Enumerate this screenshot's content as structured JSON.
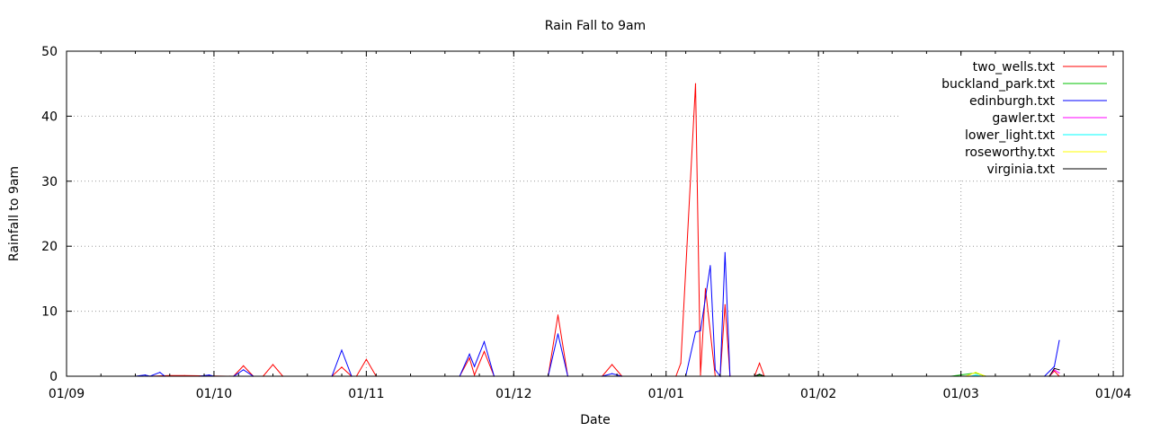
{
  "chart_data": {
    "type": "line",
    "title": "Rain Fall to 9am",
    "xlabel": "Date",
    "ylabel": "Rainfall to 9am",
    "x_tick_labels": [
      "01/09",
      "01/10",
      "01/11",
      "01/12",
      "01/01",
      "01/02",
      "01/03",
      "01/04"
    ],
    "x_tick_dates": [
      "2023-09-01",
      "2023-10-01",
      "2023-11-01",
      "2023-12-01",
      "2024-01-01",
      "2024-02-01",
      "2024-03-01",
      "2024-04-01"
    ],
    "xlim": [
      "2023-09-01",
      "2024-04-03"
    ],
    "y_ticks": [
      0,
      10,
      20,
      30,
      40,
      50
    ],
    "ylim": [
      0,
      50
    ],
    "grid": true,
    "legend_position": "top-right",
    "series": [
      {
        "name": "two_wells.txt",
        "color": "#ff0000",
        "points": [
          [
            "2023-09-18",
            0
          ],
          [
            "2023-09-22",
            0.1
          ],
          [
            "2023-09-25",
            0.1
          ],
          [
            "2023-10-05",
            0
          ],
          [
            "2023-10-07",
            1.6
          ],
          [
            "2023-10-09",
            0
          ],
          [
            "2023-10-11",
            0
          ],
          [
            "2023-10-13",
            1.8
          ],
          [
            "2023-10-15",
            0
          ],
          [
            "2023-10-25",
            0
          ],
          [
            "2023-10-27",
            1.4
          ],
          [
            "2023-10-29",
            0
          ],
          [
            "2023-10-30",
            0
          ],
          [
            "2023-11-01",
            2.6
          ],
          [
            "2023-11-03",
            0
          ],
          [
            "2023-11-20",
            0
          ],
          [
            "2023-11-22",
            2.8
          ],
          [
            "2023-11-23",
            0.2
          ],
          [
            "2023-11-25",
            3.8
          ],
          [
            "2023-11-27",
            0
          ],
          [
            "2023-12-08",
            0
          ],
          [
            "2023-12-10",
            9.4
          ],
          [
            "2023-12-12",
            0
          ],
          [
            "2023-12-19",
            0
          ],
          [
            "2023-12-21",
            1.8
          ],
          [
            "2023-12-23",
            0
          ],
          [
            "2024-01-03",
            0
          ],
          [
            "2024-01-04",
            2.0
          ],
          [
            "2024-01-07",
            45.0
          ],
          [
            "2024-01-08",
            0.2
          ],
          [
            "2024-01-09",
            13.5
          ],
          [
            "2024-01-11",
            0
          ],
          [
            "2024-01-12",
            0
          ],
          [
            "2024-01-13",
            11.0
          ],
          [
            "2024-01-14",
            0
          ],
          [
            "2024-01-19",
            0
          ],
          [
            "2024-01-20",
            2.0
          ],
          [
            "2024-01-21",
            0
          ],
          [
            "2024-03-19",
            0
          ],
          [
            "2024-03-20",
            0.8
          ],
          [
            "2024-03-21",
            0
          ]
        ]
      },
      {
        "name": "buckland_park.txt",
        "color": "#00c000",
        "points": [
          [
            "2024-01-19",
            0
          ],
          [
            "2024-01-20",
            0.2
          ],
          [
            "2024-01-21",
            0
          ],
          [
            "2024-02-28",
            0
          ],
          [
            "2024-03-04",
            0.5
          ],
          [
            "2024-03-06",
            0
          ]
        ]
      },
      {
        "name": "edinburgh.txt",
        "color": "#0000ff",
        "points": [
          [
            "2023-09-15",
            0
          ],
          [
            "2023-09-17",
            0.2
          ],
          [
            "2023-09-18",
            0
          ],
          [
            "2023-09-20",
            0.6
          ],
          [
            "2023-09-21",
            0
          ],
          [
            "2023-09-28",
            0
          ],
          [
            "2023-09-30",
            0.2
          ],
          [
            "2023-10-01",
            0
          ],
          [
            "2023-10-05",
            0
          ],
          [
            "2023-10-07",
            1.0
          ],
          [
            "2023-10-09",
            0
          ],
          [
            "2023-10-25",
            0
          ],
          [
            "2023-10-27",
            4.0
          ],
          [
            "2023-10-29",
            0
          ],
          [
            "2023-11-20",
            0
          ],
          [
            "2023-11-22",
            3.4
          ],
          [
            "2023-11-23",
            1.5
          ],
          [
            "2023-11-25",
            5.3
          ],
          [
            "2023-11-27",
            0
          ],
          [
            "2023-12-08",
            0
          ],
          [
            "2023-12-10",
            6.5
          ],
          [
            "2023-12-12",
            0
          ],
          [
            "2023-12-19",
            0
          ],
          [
            "2023-12-21",
            0.4
          ],
          [
            "2023-12-23",
            0
          ],
          [
            "2024-01-05",
            0
          ],
          [
            "2024-01-07",
            6.8
          ],
          [
            "2024-01-08",
            7.0
          ],
          [
            "2024-01-10",
            17.0
          ],
          [
            "2024-01-11",
            1.0
          ],
          [
            "2024-01-12",
            0
          ],
          [
            "2024-01-13",
            19.0
          ],
          [
            "2024-01-14",
            0
          ],
          [
            "2024-03-18",
            0
          ],
          [
            "2024-03-20",
            1.5
          ],
          [
            "2024-03-21",
            5.5
          ]
        ]
      },
      {
        "name": "gawler.txt",
        "color": "#ff00ff",
        "points": [
          [
            "2024-03-19",
            0
          ],
          [
            "2024-03-20",
            1.0
          ],
          [
            "2024-03-21",
            0.5
          ]
        ]
      },
      {
        "name": "lower_light.txt",
        "color": "#00ffff",
        "points": [
          [
            "2024-03-03",
            0
          ],
          [
            "2024-03-04",
            0.2
          ],
          [
            "2024-03-05",
            0
          ]
        ]
      },
      {
        "name": "roseworthy.txt",
        "color": "#ffff00",
        "points": [
          [
            "2024-03-02",
            0
          ],
          [
            "2024-03-04",
            0.6
          ],
          [
            "2024-03-06",
            0
          ]
        ]
      },
      {
        "name": "virginia.txt",
        "color": "#000000",
        "points": [
          [
            "2024-01-19",
            0
          ],
          [
            "2024-01-20",
            0.3
          ],
          [
            "2024-01-21",
            0
          ],
          [
            "2024-03-19",
            0
          ],
          [
            "2024-03-20",
            1.2
          ],
          [
            "2024-03-21",
            1.0
          ]
        ]
      }
    ]
  }
}
